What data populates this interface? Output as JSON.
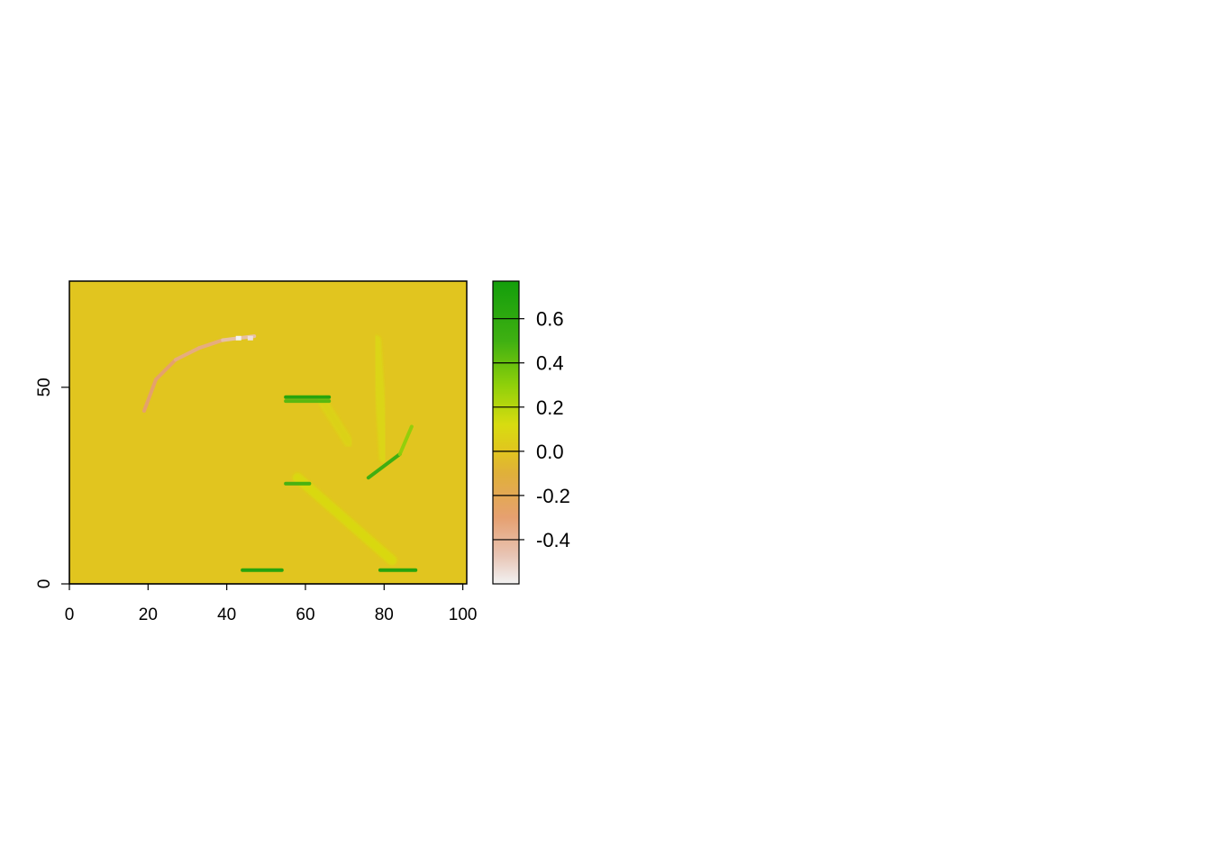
{
  "chart_data": {
    "type": "heatmap",
    "title": "",
    "xlabel": "",
    "ylabel": "",
    "xlim": [
      0,
      101
    ],
    "ylim": [
      0,
      77
    ],
    "x_ticks": [
      0,
      20,
      40,
      60,
      80,
      100
    ],
    "x_tick_labels": [
      "0",
      "20",
      "40",
      "60",
      "80",
      "100"
    ],
    "y_ticks": [
      0,
      50
    ],
    "y_tick_labels": [
      "0",
      "50"
    ],
    "grid": false,
    "background_value": 0.0,
    "features": [
      {
        "name": "R-outline-left-edge",
        "from": [
          45,
          74
        ],
        "to": [
          45,
          6
        ],
        "value": 0.08
      },
      {
        "name": "R-outline-top-edge",
        "from": [
          45,
          71
        ],
        "to": [
          76,
          71
        ],
        "value": 0.08
      },
      {
        "name": "R-stem-inner-edge",
        "from": [
          55,
          50
        ],
        "to": [
          55,
          6
        ],
        "value": 0.12
      },
      {
        "name": "R-leg-edge",
        "from": [
          58,
          27
        ],
        "to": [
          82,
          6
        ],
        "value": 0.12
      },
      {
        "name": "R-bowl-edge",
        "from": [
          78,
          62
        ],
        "to": [
          80,
          32
        ],
        "value": 0.1
      },
      {
        "name": "R-bowl-inner-edge",
        "from": [
          64,
          47
        ],
        "to": [
          71,
          36
        ],
        "value": 0.08
      },
      {
        "name": "R-bowl-bottom-edge",
        "from": [
          55,
          27
        ],
        "to": [
          76,
          27
        ],
        "value": 0.1
      },
      {
        "name": "R-outline-bottom",
        "from": [
          45,
          4
        ],
        "to": [
          57,
          4
        ],
        "value": 0.08
      },
      {
        "name": "R-leg-bottom",
        "from": [
          79,
          4
        ],
        "to": [
          91,
          4
        ],
        "value": 0.08
      },
      {
        "name": "stem-foot-edge",
        "from": [
          44,
          3.5
        ],
        "to": [
          54,
          3.5
        ],
        "value": 0.7
      },
      {
        "name": "leg-foot-edge",
        "from": [
          79,
          3.5
        ],
        "to": [
          88,
          3.5
        ],
        "value": 0.7
      },
      {
        "name": "bowl-inner-top-edge",
        "from": [
          55,
          47.5
        ],
        "to": [
          66,
          47.5
        ],
        "value": 0.7
      },
      {
        "name": "bowl-inner-top-edge-2",
        "from": [
          55,
          46.5
        ],
        "to": [
          66,
          46.5
        ],
        "value": 0.45
      },
      {
        "name": "bowl-waist-edge",
        "from": [
          55,
          25.5
        ],
        "to": [
          61,
          25.5
        ],
        "value": 0.5
      },
      {
        "name": "bowl-diagonal-edge",
        "from": [
          76,
          27
        ],
        "to": [
          84,
          33
        ],
        "value": 0.55
      },
      {
        "name": "ring-upper-right",
        "from": [
          84,
          33
        ],
        "to": [
          87,
          40
        ],
        "value": 0.3
      },
      {
        "name": "ring-arc-1",
        "from": [
          19,
          44
        ],
        "to": [
          22,
          52
        ],
        "value": -0.3
      },
      {
        "name": "ring-arc-2",
        "from": [
          22,
          52
        ],
        "to": [
          27,
          57
        ],
        "value": -0.3
      },
      {
        "name": "ring-arc-3",
        "from": [
          27,
          57
        ],
        "to": [
          33,
          60
        ],
        "value": -0.35
      },
      {
        "name": "ring-arc-4",
        "from": [
          33,
          60
        ],
        "to": [
          39,
          62
        ],
        "value": -0.35
      },
      {
        "name": "ring-arc-5",
        "from": [
          39,
          62
        ],
        "to": [
          47,
          63
        ],
        "value": -0.45
      }
    ],
    "bright_spots": [
      {
        "x": 43,
        "y": 62.5,
        "value": -0.6
      },
      {
        "x": 46,
        "y": 62.5,
        "value": -0.55
      }
    ],
    "colorbar": {
      "min": -0.6,
      "max": 0.77,
      "ticks": [
        0.6,
        0.4,
        0.2,
        0.0,
        -0.2,
        -0.4
      ],
      "tick_labels": [
        "0.6",
        "0.4",
        "0.2",
        "0.0",
        "-0.2",
        "-0.4"
      ],
      "colors": [
        "#f2f2f2",
        "#e8c4b4",
        "#e6a070",
        "#e0b03a",
        "#e1c51f",
        "#d8dc10",
        "#8fd00a",
        "#3fb012",
        "#139e0b"
      ],
      "color_stops": [
        -0.6,
        -0.47,
        -0.3,
        -0.1,
        0.0,
        0.12,
        0.3,
        0.5,
        0.77
      ]
    }
  }
}
